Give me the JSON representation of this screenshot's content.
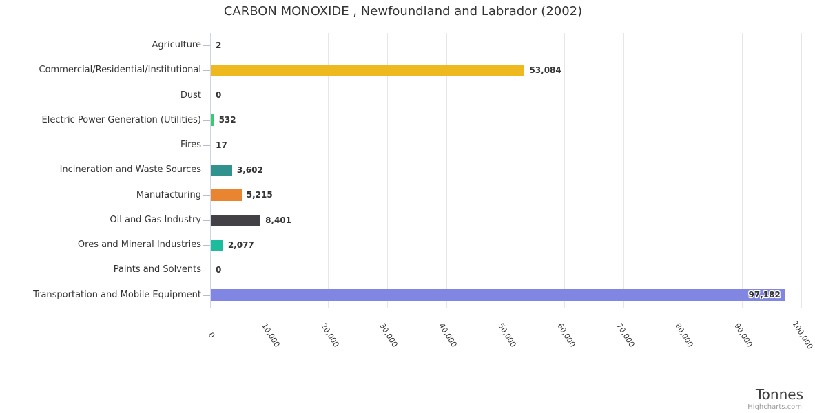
{
  "credits": "Highcharts.com",
  "axis": {
    "title": "Tonnes"
  },
  "colors": {
    "title_text": "#333333",
    "label_text": "#333333",
    "grid": "#e6e6e6",
    "axis_line": "#ccd6eb",
    "tick": "#b6becc",
    "axis_title_text": "#3f3f3f",
    "credits_text": "#999999"
  },
  "chart_data": {
    "type": "bar",
    "title": "CARBON MONOXIDE , Newfoundland and Labrador (2002)",
    "categories": [
      "Agriculture",
      "Commercial/Residential/Institutional",
      "Dust",
      "Electric Power Generation (Utilities)",
      "Fires",
      "Incineration and Waste Sources",
      "Manufacturing",
      "Oil and Gas Industry",
      "Ores and Mineral Industries",
      "Paints and Solvents",
      "Transportation and Mobile Equipment"
    ],
    "values": [
      2,
      53084,
      0,
      532,
      17,
      3602,
      5215,
      8401,
      2077,
      0,
      97182
    ],
    "value_labels": [
      "2",
      "53,084",
      "0",
      "532",
      "17",
      "3,602",
      "5,215",
      "8,401",
      "2,077",
      "0",
      "97,182"
    ],
    "bar_colors": [
      null,
      "#edb91e",
      null,
      "#3bc973",
      null,
      "#31918c",
      "#e98530",
      "#434046",
      "#1cbc9c",
      null,
      "#8186e2"
    ],
    "xlabel": "Tonnes",
    "ylabel": "",
    "xlim": [
      0,
      100000
    ],
    "tick_interval": 10000,
    "tick_labels": [
      "0",
      "10,000",
      "20,000",
      "30,000",
      "40,000",
      "50,000",
      "60,000",
      "70,000",
      "80,000",
      "90,000",
      "100,000"
    ],
    "grid": true,
    "legend": false
  }
}
